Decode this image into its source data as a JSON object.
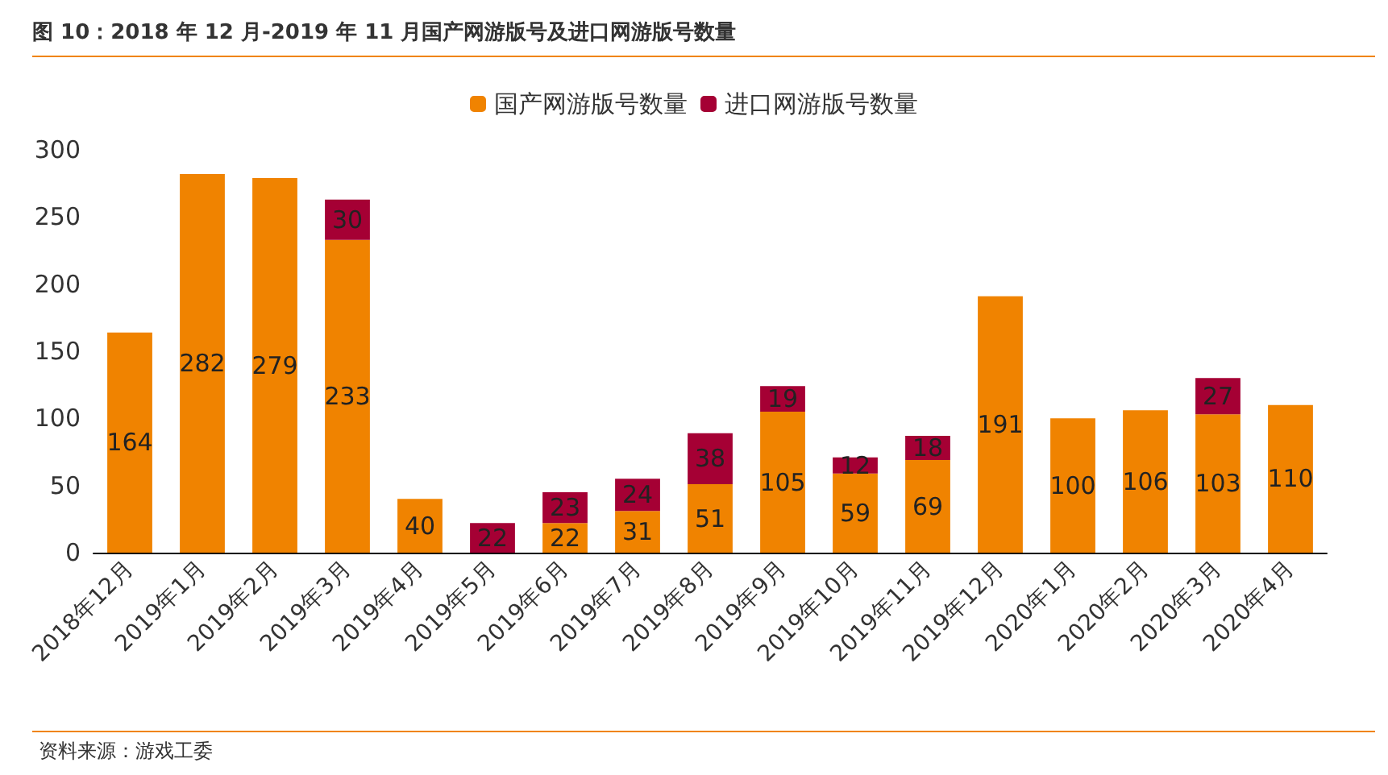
{
  "chart_data": {
    "type": "bar",
    "title": "图 10：2018 年 12 月-2019 年 11 月国产网游版号及进口网游版号数量",
    "categories": [
      "2018年12月",
      "2019年1月",
      "2019年2月",
      "2019年3月",
      "2019年4月",
      "2019年5月",
      "2019年6月",
      "2019年7月",
      "2019年8月",
      "2019年9月",
      "2019年10月",
      "2019年11月",
      "2019年12月",
      "2020年1月",
      "2020年2月",
      "2020年3月",
      "2020年4月"
    ],
    "series": [
      {
        "name": "国产网游版号数量",
        "color": "#f08300",
        "values": [
          164,
          282,
          279,
          233,
          40,
          null,
          22,
          31,
          51,
          105,
          59,
          69,
          191,
          100,
          106,
          103,
          110
        ]
      },
      {
        "name": "进口网游版号数量",
        "color": "#a50034",
        "values": [
          null,
          null,
          null,
          30,
          null,
          22,
          23,
          24,
          38,
          19,
          12,
          18,
          null,
          null,
          null,
          27,
          null
        ]
      }
    ],
    "stacked": true,
    "data_labels": true,
    "ylim": [
      0,
      300
    ],
    "yticks": [
      0,
      50,
      100,
      150,
      200,
      250,
      300
    ],
    "grid": false,
    "legend": "top",
    "annotations": [
      "资料来源：游戏工委"
    ]
  }
}
